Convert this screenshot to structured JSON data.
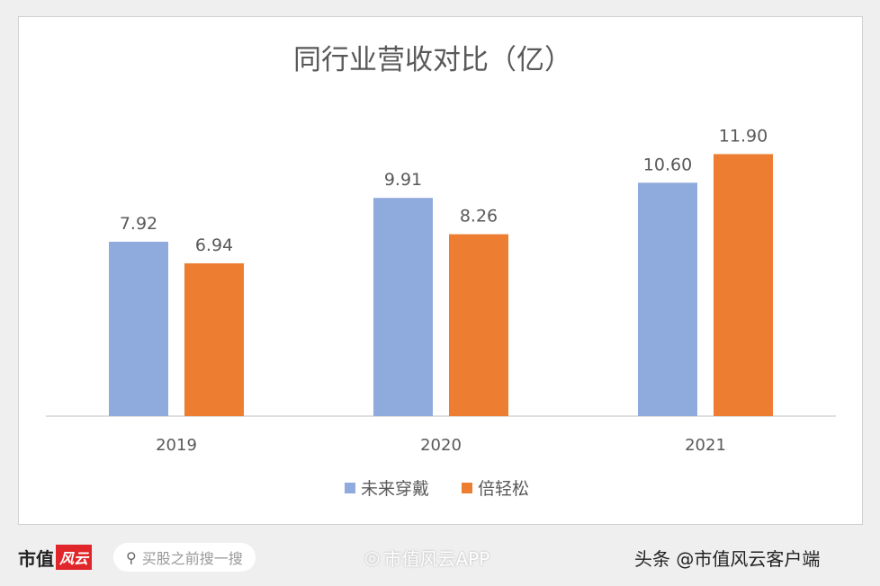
{
  "chart_data": {
    "type": "bar",
    "title": "同行业营收对比（亿）",
    "categories": [
      "2019",
      "2020",
      "2021"
    ],
    "series": [
      {
        "name": "未来穿戴",
        "color": "#8faadc",
        "values": [
          7.92,
          9.91,
          10.6
        ],
        "labels": [
          "7.92",
          "9.91",
          "10.60"
        ]
      },
      {
        "name": "倍轻松",
        "color": "#ed7d31",
        "values": [
          6.94,
          8.26,
          11.9
        ],
        "labels": [
          "6.94",
          "8.26",
          "11.90"
        ]
      }
    ],
    "ylim": [
      0,
      12.5
    ],
    "grid": false,
    "legend": "bottom"
  },
  "footer": {
    "logo_text": "市值",
    "logo_badge": "风云",
    "search_placeholder": "买股之前搜一搜",
    "weibo_text": "市值风云APP",
    "toutiao_text": "头条 @市值风云客户端"
  }
}
